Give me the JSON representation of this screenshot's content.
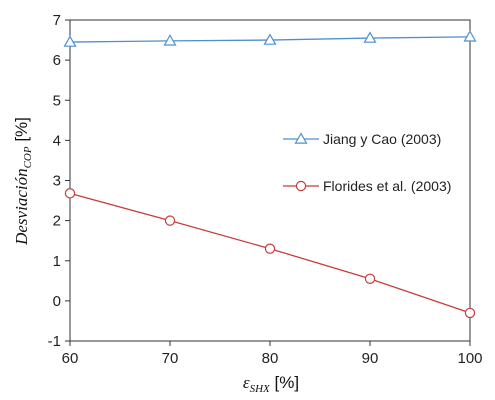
{
  "chart_data": {
    "type": "line",
    "title": "",
    "x": [
      60,
      70,
      80,
      90,
      100
    ],
    "xlim": [
      60,
      100
    ],
    "xticks": [
      "60",
      "70",
      "80",
      "90",
      "100"
    ],
    "ylim": [
      -1,
      7
    ],
    "yticks": [
      "-1",
      "0",
      "1",
      "2",
      "3",
      "4",
      "5",
      "6",
      "7"
    ],
    "grid": false,
    "legend_position": "right",
    "xlabel": {
      "main": "ε",
      "sub": "SHX",
      "unit": " [%]"
    },
    "ylabel": {
      "main": "Desviación",
      "sub": "COP",
      "unit": " [%]"
    },
    "series": [
      {
        "name": "Jiang y Cao (2003)",
        "marker": "triangle",
        "color": "#4f8fd0",
        "values": [
          6.45,
          6.48,
          6.5,
          6.55,
          6.58
        ]
      },
      {
        "name": "Florides et al. (2003)",
        "marker": "circle",
        "color": "#c83c3c",
        "values": [
          2.68,
          2.0,
          1.3,
          0.55,
          -0.3
        ]
      }
    ]
  }
}
